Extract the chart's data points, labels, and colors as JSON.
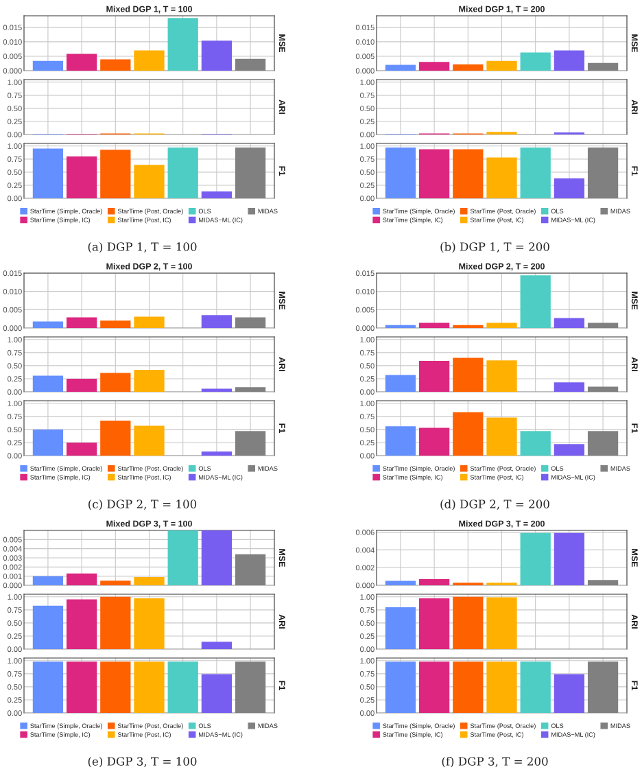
{
  "chart_data": [
    {
      "type": "bar",
      "title": "Mixed DGP 1, T = 100",
      "ylabel": "MSE",
      "categories": [
        null
      ],
      "ylim": [
        0,
        0.019
      ],
      "yticks": [
        {
          "value": 0,
          "label": "0.000"
        },
        {
          "value": 0.005,
          "label": "0.005"
        },
        {
          "value": 0.01,
          "label": "0.010"
        },
        {
          "value": 0.015,
          "label": "0.015"
        }
      ],
      "grid": true,
      "tick_labels": "y",
      "series": [
        {
          "color": "#648fff",
          "values": [
            0.0034
          ]
        },
        {
          "color": "#dc267f",
          "values": [
            0.0058
          ]
        },
        {
          "color": "#fe6100",
          "values": [
            0.0039
          ]
        },
        {
          "color": "#ffb000",
          "values": [
            0.007
          ]
        },
        {
          "color": "#4ecdc4",
          "values": [
            0.0182
          ]
        },
        {
          "color": "#785ef0",
          "values": [
            0.0104
          ]
        },
        {
          "color": "#808080",
          "values": [
            0.0041
          ]
        }
      ]
    },
    {
      "type": "bar",
      "ylabel": "ARI",
      "categories": [
        null
      ],
      "ylim": [
        0,
        1.05
      ],
      "yticks": [
        {
          "value": 0,
          "label": "0.00"
        },
        {
          "value": 0.25,
          "label": "0.25"
        },
        {
          "value": 0.5,
          "label": "0.50"
        },
        {
          "value": 0.75,
          "label": "0.75"
        },
        {
          "value": 1,
          "label": "1.00"
        }
      ],
      "grid": true,
      "tick_labels": "y",
      "series": [
        {
          "color": "#648fff",
          "values": [
            0.01
          ]
        },
        {
          "color": "#dc267f",
          "values": [
            0.01
          ]
        },
        {
          "color": "#fe6100",
          "values": [
            0.02
          ]
        },
        {
          "color": "#ffb000",
          "values": [
            0.02
          ]
        },
        {
          "color": "#4ecdc4",
          "values": [
            0.0
          ]
        },
        {
          "color": "#785ef0",
          "values": [
            0.01
          ]
        },
        {
          "color": "#808080",
          "values": [
            0.0
          ]
        }
      ]
    },
    {
      "type": "bar",
      "ylabel": "F1",
      "categories": [
        null
      ],
      "ylim": [
        0,
        1.05
      ],
      "yticks": [
        {
          "value": 0,
          "label": "0.00"
        },
        {
          "value": 0.25,
          "label": "0.25"
        },
        {
          "value": 0.5,
          "label": "0.50"
        },
        {
          "value": 0.75,
          "label": "0.75"
        },
        {
          "value": 1,
          "label": "1.00"
        }
      ],
      "grid": true,
      "tick_labels": "y",
      "legend": "bottom",
      "annotations": [
        "(a) DGP 1, T = 100"
      ],
      "series": [
        {
          "name": "StarTime (Simple, Oracle)",
          "color": "#648fff",
          "values": [
            0.95
          ]
        },
        {
          "name": "StarTime (Simple, IC)",
          "color": "#dc267f",
          "values": [
            0.8
          ]
        },
        {
          "name": "StarTime (Post, Oracle)",
          "color": "#fe6100",
          "values": [
            0.93
          ]
        },
        {
          "name": "StarTime (Post, IC)",
          "color": "#ffb000",
          "values": [
            0.64
          ]
        },
        {
          "name": "OLS",
          "color": "#4ecdc4",
          "values": [
            0.97
          ]
        },
        {
          "name": "MIDAS−ML (IC)",
          "color": "#785ef0",
          "values": [
            0.13
          ]
        },
        {
          "name": "MIDAS",
          "color": "#808080",
          "values": [
            0.97
          ]
        }
      ]
    },
    {
      "type": "bar",
      "title": "Mixed DGP 1, T = 200",
      "ylabel": "MSE",
      "categories": [
        null
      ],
      "ylim": [
        0,
        0.019
      ],
      "yticks": [
        {
          "value": 0,
          "label": "0.000"
        },
        {
          "value": 0.005,
          "label": "0.005"
        },
        {
          "value": 0.01,
          "label": "0.010"
        },
        {
          "value": 0.015,
          "label": "0.015"
        }
      ],
      "grid": true,
      "tick_labels": "y",
      "series": [
        {
          "color": "#648fff",
          "values": [
            0.002
          ]
        },
        {
          "color": "#dc267f",
          "values": [
            0.003
          ]
        },
        {
          "color": "#fe6100",
          "values": [
            0.0022
          ]
        },
        {
          "color": "#ffb000",
          "values": [
            0.0034
          ]
        },
        {
          "color": "#4ecdc4",
          "values": [
            0.0063
          ]
        },
        {
          "color": "#785ef0",
          "values": [
            0.007
          ]
        },
        {
          "color": "#808080",
          "values": [
            0.0027
          ]
        }
      ]
    },
    {
      "type": "bar",
      "ylabel": "ARI",
      "categories": [
        null
      ],
      "ylim": [
        0,
        1.05
      ],
      "yticks": [
        {
          "value": 0,
          "label": "0.00"
        },
        {
          "value": 0.25,
          "label": "0.25"
        },
        {
          "value": 0.5,
          "label": "0.50"
        },
        {
          "value": 0.75,
          "label": "0.75"
        },
        {
          "value": 1,
          "label": "1.00"
        }
      ],
      "grid": true,
      "tick_labels": "y",
      "series": [
        {
          "color": "#648fff",
          "values": [
            0.01
          ]
        },
        {
          "color": "#dc267f",
          "values": [
            0.02
          ]
        },
        {
          "color": "#fe6100",
          "values": [
            0.02
          ]
        },
        {
          "color": "#ffb000",
          "values": [
            0.05
          ]
        },
        {
          "color": "#4ecdc4",
          "values": [
            0.0
          ]
        },
        {
          "color": "#785ef0",
          "values": [
            0.04
          ]
        },
        {
          "color": "#808080",
          "values": [
            0.0
          ]
        }
      ]
    },
    {
      "type": "bar",
      "ylabel": "F1",
      "categories": [
        null
      ],
      "ylim": [
        0,
        1.05
      ],
      "yticks": [
        {
          "value": 0,
          "label": "0.00"
        },
        {
          "value": 0.25,
          "label": "0.25"
        },
        {
          "value": 0.5,
          "label": "0.50"
        },
        {
          "value": 0.75,
          "label": "0.75"
        },
        {
          "value": 1,
          "label": "1.00"
        }
      ],
      "grid": true,
      "tick_labels": "y",
      "legend": "bottom",
      "annotations": [
        "(b) DGP 1, T = 200"
      ],
      "series": [
        {
          "name": "StarTime (Simple, Oracle)",
          "color": "#648fff",
          "values": [
            0.97
          ]
        },
        {
          "name": "StarTime (Simple, IC)",
          "color": "#dc267f",
          "values": [
            0.94
          ]
        },
        {
          "name": "StarTime (Post, Oracle)",
          "color": "#fe6100",
          "values": [
            0.94
          ]
        },
        {
          "name": "StarTime (Post, IC)",
          "color": "#ffb000",
          "values": [
            0.78
          ]
        },
        {
          "name": "OLS",
          "color": "#4ecdc4",
          "values": [
            0.97
          ]
        },
        {
          "name": "MIDAS−ML (IC)",
          "color": "#785ef0",
          "values": [
            0.38
          ]
        },
        {
          "name": "MIDAS",
          "color": "#808080",
          "values": [
            0.97
          ]
        }
      ]
    },
    {
      "type": "bar",
      "title": "Mixed DGP 2, T = 100",
      "ylabel": "MSE",
      "categories": [
        null
      ],
      "ylim": [
        0,
        0.015
      ],
      "yticks": [
        {
          "value": 0,
          "label": "0.000"
        },
        {
          "value": 0.005,
          "label": "0.005"
        },
        {
          "value": 0.01,
          "label": "0.010"
        },
        {
          "value": 0.015,
          "label": "0.015"
        }
      ],
      "grid": true,
      "tick_labels": "y",
      "series": [
        {
          "color": "#648fff",
          "values": [
            0.0018
          ]
        },
        {
          "color": "#dc267f",
          "values": [
            0.0029
          ]
        },
        {
          "color": "#fe6100",
          "values": [
            0.002
          ]
        },
        {
          "color": "#ffb000",
          "values": [
            0.0031
          ]
        },
        {
          "color": "#4ecdc4",
          "values": [
            0.0
          ]
        },
        {
          "color": "#785ef0",
          "values": [
            0.0035
          ]
        },
        {
          "color": "#808080",
          "values": [
            0.0029
          ]
        }
      ]
    },
    {
      "type": "bar",
      "ylabel": "ARI",
      "categories": [
        null
      ],
      "ylim": [
        0,
        1.05
      ],
      "yticks": [
        {
          "value": 0,
          "label": "0.00"
        },
        {
          "value": 0.25,
          "label": "0.25"
        },
        {
          "value": 0.5,
          "label": "0.50"
        },
        {
          "value": 0.75,
          "label": "0.75"
        },
        {
          "value": 1,
          "label": "1.00"
        }
      ],
      "grid": true,
      "tick_labels": "y",
      "series": [
        {
          "color": "#648fff",
          "values": [
            0.31
          ]
        },
        {
          "color": "#dc267f",
          "values": [
            0.25
          ]
        },
        {
          "color": "#fe6100",
          "values": [
            0.36
          ]
        },
        {
          "color": "#ffb000",
          "values": [
            0.42
          ]
        },
        {
          "color": "#4ecdc4",
          "values": [
            0.0
          ]
        },
        {
          "color": "#785ef0",
          "values": [
            0.06
          ]
        },
        {
          "color": "#808080",
          "values": [
            0.09
          ]
        }
      ]
    },
    {
      "type": "bar",
      "ylabel": "F1",
      "categories": [
        null
      ],
      "ylim": [
        0,
        1.05
      ],
      "yticks": [
        {
          "value": 0,
          "label": "0.00"
        },
        {
          "value": 0.25,
          "label": "0.25"
        },
        {
          "value": 0.5,
          "label": "0.50"
        },
        {
          "value": 0.75,
          "label": "0.75"
        },
        {
          "value": 1,
          "label": "1.00"
        }
      ],
      "grid": true,
      "tick_labels": "y",
      "legend": "bottom",
      "annotations": [
        "(c) DGP 2, T = 100"
      ],
      "series": [
        {
          "name": "StarTime (Simple, Oracle)",
          "color": "#648fff",
          "values": [
            0.5
          ]
        },
        {
          "name": "StarTime (Simple, IC)",
          "color": "#dc267f",
          "values": [
            0.25
          ]
        },
        {
          "name": "StarTime (Post, Oracle)",
          "color": "#fe6100",
          "values": [
            0.67
          ]
        },
        {
          "name": "StarTime (Post, IC)",
          "color": "#ffb000",
          "values": [
            0.57
          ]
        },
        {
          "name": "OLS",
          "color": "#4ecdc4",
          "values": [
            0.0
          ]
        },
        {
          "name": "MIDAS−ML (IC)",
          "color": "#785ef0",
          "values": [
            0.08
          ]
        },
        {
          "name": "MIDAS",
          "color": "#808080",
          "values": [
            0.47
          ]
        }
      ]
    },
    {
      "type": "bar",
      "title": "Mixed DGP 2, T = 200",
      "ylabel": "MSE",
      "categories": [
        null
      ],
      "ylim": [
        0,
        0.015
      ],
      "yticks": [
        {
          "value": 0,
          "label": "0.000"
        },
        {
          "value": 0.005,
          "label": "0.005"
        },
        {
          "value": 0.01,
          "label": "0.010"
        },
        {
          "value": 0.015,
          "label": "0.015"
        }
      ],
      "grid": true,
      "tick_labels": "y",
      "series": [
        {
          "color": "#648fff",
          "values": [
            0.0008
          ]
        },
        {
          "color": "#dc267f",
          "values": [
            0.0014
          ]
        },
        {
          "color": "#fe6100",
          "values": [
            0.0008
          ]
        },
        {
          "color": "#ffb000",
          "values": [
            0.0014
          ]
        },
        {
          "color": "#4ecdc4",
          "values": [
            0.0144
          ]
        },
        {
          "color": "#785ef0",
          "values": [
            0.0027
          ]
        },
        {
          "color": "#808080",
          "values": [
            0.0014
          ]
        }
      ]
    },
    {
      "type": "bar",
      "ylabel": "ARI",
      "categories": [
        null
      ],
      "ylim": [
        0,
        1.05
      ],
      "yticks": [
        {
          "value": 0,
          "label": "0.00"
        },
        {
          "value": 0.25,
          "label": "0.25"
        },
        {
          "value": 0.5,
          "label": "0.50"
        },
        {
          "value": 0.75,
          "label": "0.75"
        },
        {
          "value": 1,
          "label": "1.00"
        }
      ],
      "grid": true,
      "tick_labels": "y",
      "series": [
        {
          "color": "#648fff",
          "values": [
            0.32
          ]
        },
        {
          "color": "#dc267f",
          "values": [
            0.59
          ]
        },
        {
          "color": "#fe6100",
          "values": [
            0.65
          ]
        },
        {
          "color": "#ffb000",
          "values": [
            0.6
          ]
        },
        {
          "color": "#4ecdc4",
          "values": [
            0.0
          ]
        },
        {
          "color": "#785ef0",
          "values": [
            0.18
          ]
        },
        {
          "color": "#808080",
          "values": [
            0.1
          ]
        }
      ]
    },
    {
      "type": "bar",
      "ylabel": "F1",
      "categories": [
        null
      ],
      "ylim": [
        0,
        1.05
      ],
      "yticks": [
        {
          "value": 0,
          "label": "0.00"
        },
        {
          "value": 0.25,
          "label": "0.25"
        },
        {
          "value": 0.5,
          "label": "0.50"
        },
        {
          "value": 0.75,
          "label": "0.75"
        },
        {
          "value": 1,
          "label": "1.00"
        }
      ],
      "grid": true,
      "tick_labels": "y",
      "legend": "bottom",
      "annotations": [
        "(d) DGP 2, T = 200"
      ],
      "series": [
        {
          "name": "StarTime (Simple, Oracle)",
          "color": "#648fff",
          "values": [
            0.56
          ]
        },
        {
          "name": "StarTime (Simple, IC)",
          "color": "#dc267f",
          "values": [
            0.53
          ]
        },
        {
          "name": "StarTime (Post, Oracle)",
          "color": "#fe6100",
          "values": [
            0.83
          ]
        },
        {
          "name": "StarTime (Post, IC)",
          "color": "#ffb000",
          "values": [
            0.73
          ]
        },
        {
          "name": "OLS",
          "color": "#4ecdc4",
          "values": [
            0.47
          ]
        },
        {
          "name": "MIDAS−ML (IC)",
          "color": "#785ef0",
          "values": [
            0.22
          ]
        },
        {
          "name": "MIDAS",
          "color": "#808080",
          "values": [
            0.47
          ]
        }
      ]
    },
    {
      "type": "bar",
      "title": "Mixed DGP 3, T = 100",
      "ylabel": "MSE",
      "categories": [
        null
      ],
      "ylim": [
        0,
        0.006
      ],
      "yticks": [
        {
          "value": 0,
          "label": "0.000"
        },
        {
          "value": 0.001,
          "label": "0.001"
        },
        {
          "value": 0.002,
          "label": "0.002"
        },
        {
          "value": 0.003,
          "label": "0.003"
        },
        {
          "value": 0.004,
          "label": "0.004"
        },
        {
          "value": 0.005,
          "label": "0.005"
        }
      ],
      "grid": true,
      "tick_labels": "y",
      "series": [
        {
          "color": "#648fff",
          "values": [
            0.001
          ]
        },
        {
          "color": "#dc267f",
          "values": [
            0.0013
          ]
        },
        {
          "color": "#fe6100",
          "values": [
            0.0005
          ]
        },
        {
          "color": "#ffb000",
          "values": [
            0.0009
          ]
        },
        {
          "color": "#4ecdc4",
          "values": [
            0.006
          ]
        },
        {
          "color": "#785ef0",
          "values": [
            0.006
          ]
        },
        {
          "color": "#808080",
          "values": [
            0.0034
          ]
        }
      ]
    },
    {
      "type": "bar",
      "ylabel": "ARI",
      "categories": [
        null
      ],
      "ylim": [
        0,
        1.05
      ],
      "yticks": [
        {
          "value": 0,
          "label": "0.00"
        },
        {
          "value": 0.25,
          "label": "0.25"
        },
        {
          "value": 0.5,
          "label": "0.50"
        },
        {
          "value": 0.75,
          "label": "0.75"
        },
        {
          "value": 1,
          "label": "1.00"
        }
      ],
      "grid": true,
      "tick_labels": "y",
      "series": [
        {
          "color": "#648fff",
          "values": [
            0.83
          ]
        },
        {
          "color": "#dc267f",
          "values": [
            0.95
          ]
        },
        {
          "color": "#fe6100",
          "values": [
            1.0
          ]
        },
        {
          "color": "#ffb000",
          "values": [
            0.97
          ]
        },
        {
          "color": "#4ecdc4",
          "values": [
            0.0
          ]
        },
        {
          "color": "#785ef0",
          "values": [
            0.14
          ]
        },
        {
          "color": "#808080",
          "values": [
            0.0
          ]
        }
      ]
    },
    {
      "type": "bar",
      "ylabel": "F1",
      "categories": [
        null
      ],
      "ylim": [
        0,
        1.05
      ],
      "yticks": [
        {
          "value": 0,
          "label": "0.00"
        },
        {
          "value": 0.25,
          "label": "0.25"
        },
        {
          "value": 0.5,
          "label": "0.50"
        },
        {
          "value": 0.75,
          "label": "0.75"
        },
        {
          "value": 1,
          "label": "1.00"
        }
      ],
      "grid": true,
      "tick_labels": "y",
      "legend": "bottom",
      "annotations": [
        "(e) DGP 3, T = 100"
      ],
      "series": [
        {
          "name": "StarTime (Simple, Oracle)",
          "color": "#648fff",
          "values": [
            0.98
          ]
        },
        {
          "name": "StarTime (Simple, IC)",
          "color": "#dc267f",
          "values": [
            0.98
          ]
        },
        {
          "name": "StarTime (Post, Oracle)",
          "color": "#fe6100",
          "values": [
            0.98
          ]
        },
        {
          "name": "StarTime (Post, IC)",
          "color": "#ffb000",
          "values": [
            0.98
          ]
        },
        {
          "name": "OLS",
          "color": "#4ecdc4",
          "values": [
            0.98
          ]
        },
        {
          "name": "MIDAS−ML (IC)",
          "color": "#785ef0",
          "values": [
            0.74
          ]
        },
        {
          "name": "MIDAS",
          "color": "#808080",
          "values": [
            0.98
          ]
        }
      ]
    },
    {
      "type": "bar",
      "title": "Mixed DGP 3, T = 200",
      "ylabel": "MSE",
      "categories": [
        null
      ],
      "ylim": [
        0,
        0.0062
      ],
      "yticks": [
        {
          "value": 0,
          "label": "0.000"
        },
        {
          "value": 0.002,
          "label": "0.002"
        },
        {
          "value": 0.004,
          "label": "0.004"
        },
        {
          "value": 0.006,
          "label": "0.006"
        }
      ],
      "grid": true,
      "tick_labels": "y",
      "series": [
        {
          "color": "#648fff",
          "values": [
            0.0005
          ]
        },
        {
          "color": "#dc267f",
          "values": [
            0.0007
          ]
        },
        {
          "color": "#fe6100",
          "values": [
            0.0003
          ]
        },
        {
          "color": "#ffb000",
          "values": [
            0.0003
          ]
        },
        {
          "color": "#4ecdc4",
          "values": [
            0.0059
          ]
        },
        {
          "color": "#785ef0",
          "values": [
            0.0059
          ]
        },
        {
          "color": "#808080",
          "values": [
            0.0006
          ]
        }
      ]
    },
    {
      "type": "bar",
      "ylabel": "ARI",
      "categories": [
        null
      ],
      "ylim": [
        0,
        1.05
      ],
      "yticks": [
        {
          "value": 0,
          "label": "0.00"
        },
        {
          "value": 0.25,
          "label": "0.25"
        },
        {
          "value": 0.5,
          "label": "0.50"
        },
        {
          "value": 0.75,
          "label": "0.75"
        },
        {
          "value": 1,
          "label": "1.00"
        }
      ],
      "grid": true,
      "tick_labels": "y",
      "series": [
        {
          "color": "#648fff",
          "values": [
            0.8
          ]
        },
        {
          "color": "#dc267f",
          "values": [
            0.97
          ]
        },
        {
          "color": "#fe6100",
          "values": [
            1.0
          ]
        },
        {
          "color": "#ffb000",
          "values": [
            0.99
          ]
        },
        {
          "color": "#4ecdc4",
          "values": [
            0.0
          ]
        },
        {
          "color": "#785ef0",
          "values": [
            0.0
          ]
        },
        {
          "color": "#808080",
          "values": [
            0.0
          ]
        }
      ]
    },
    {
      "type": "bar",
      "ylabel": "F1",
      "categories": [
        null
      ],
      "ylim": [
        0,
        1.05
      ],
      "yticks": [
        {
          "value": 0,
          "label": "0.00"
        },
        {
          "value": 0.25,
          "label": "0.25"
        },
        {
          "value": 0.5,
          "label": "0.50"
        },
        {
          "value": 0.75,
          "label": "0.75"
        },
        {
          "value": 1,
          "label": "1.00"
        }
      ],
      "grid": true,
      "tick_labels": "y",
      "legend": "bottom",
      "annotations": [
        "(f) DGP 3, T = 200"
      ],
      "series": [
        {
          "name": "StarTime (Simple, Oracle)",
          "color": "#648fff",
          "values": [
            0.98
          ]
        },
        {
          "name": "StarTime (Simple, IC)",
          "color": "#dc267f",
          "values": [
            0.98
          ]
        },
        {
          "name": "StarTime (Post, Oracle)",
          "color": "#fe6100",
          "values": [
            0.98
          ]
        },
        {
          "name": "StarTime (Post, IC)",
          "color": "#ffb000",
          "values": [
            0.98
          ]
        },
        {
          "name": "OLS",
          "color": "#4ecdc4",
          "values": [
            0.98
          ]
        },
        {
          "name": "MIDAS−ML (IC)",
          "color": "#785ef0",
          "values": [
            0.74
          ]
        },
        {
          "name": "MIDAS",
          "color": "#808080",
          "values": [
            0.98
          ]
        }
      ]
    }
  ]
}
